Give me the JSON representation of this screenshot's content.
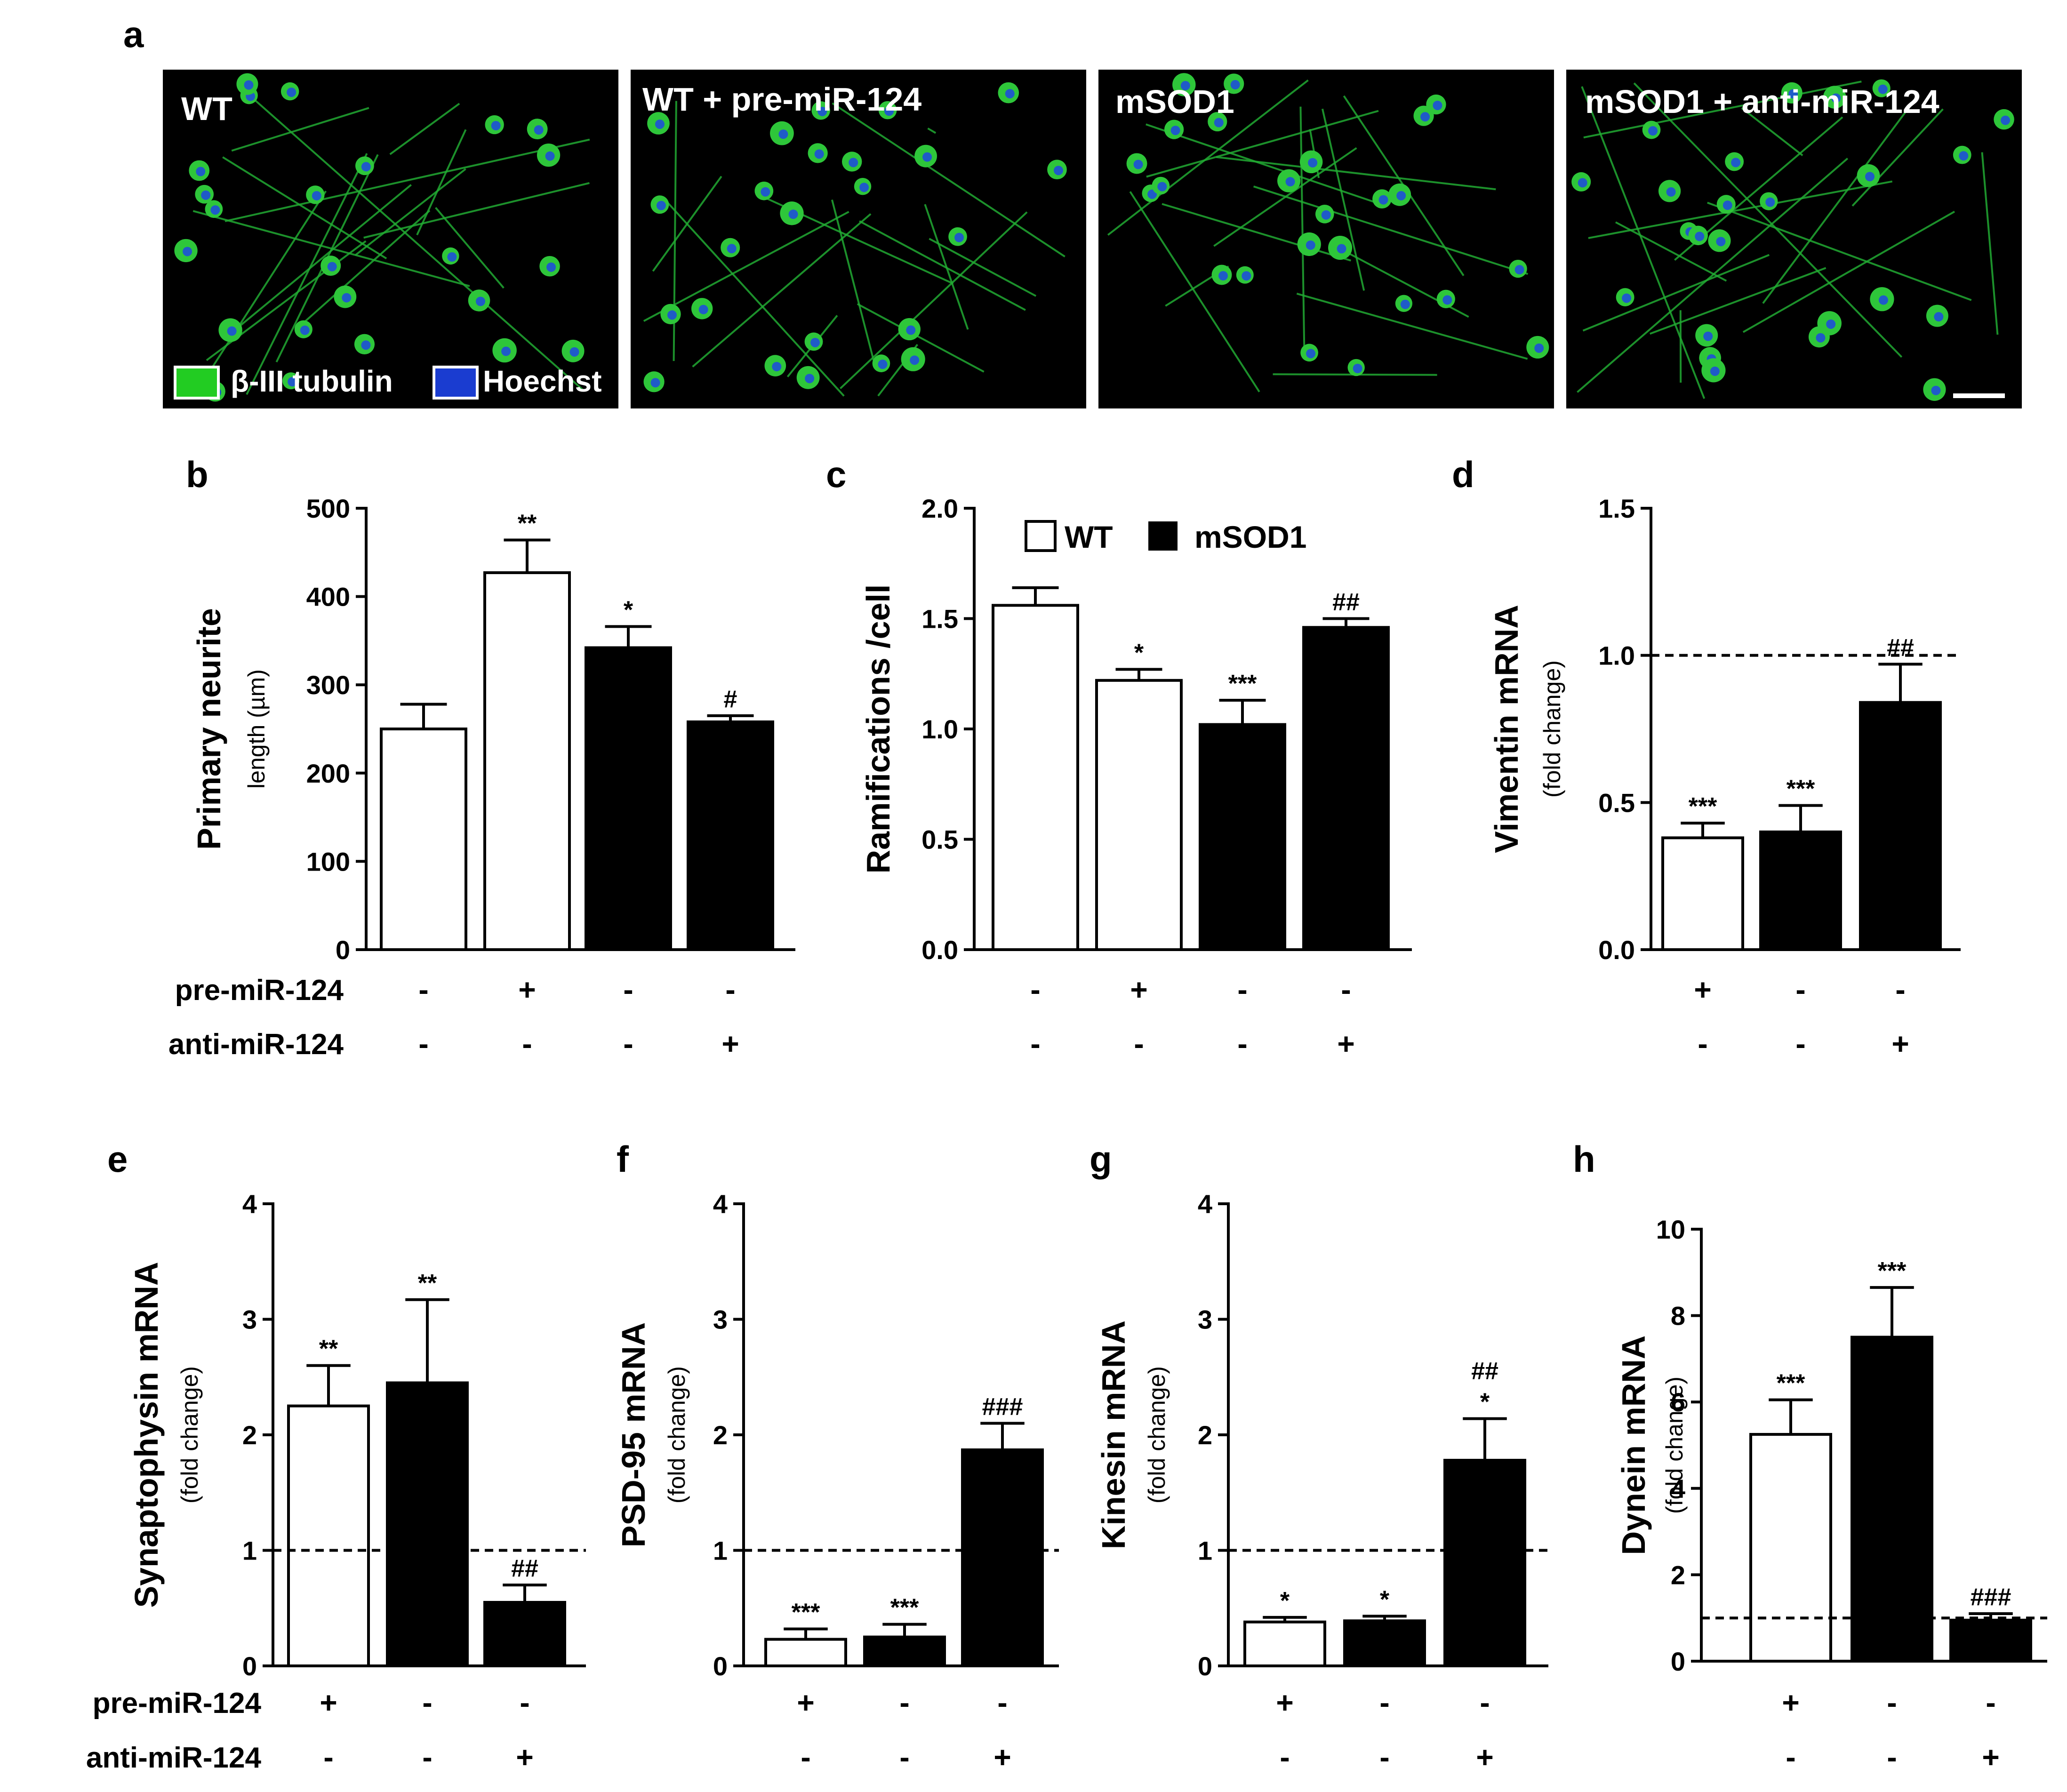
{
  "panel_a": {
    "label": "a",
    "images": [
      {
        "title": "WT"
      },
      {
        "title": "WT + pre-miR-124"
      },
      {
        "title": "mSOD1"
      },
      {
        "title": "mSOD1 + anti-miR-124"
      }
    ],
    "legend": [
      {
        "label": "β-III tubulin",
        "color": "#22cc22"
      },
      {
        "label": "Hoechst",
        "color": "#1a3cd0"
      }
    ]
  },
  "legend": {
    "wt": "WT",
    "msod1": "mSOD1"
  },
  "row_labels": {
    "pre": "pre-miR-124",
    "anti": "anti-miR-124"
  },
  "colors": {
    "wt_fill": "#ffffff",
    "msod1_fill": "#000000",
    "stroke": "#000000"
  },
  "chart_data": [
    {
      "id": "b",
      "label": "b",
      "type": "bar",
      "ylabel": "Primary neurite",
      "ylabel_sub": "length (µm)",
      "ylim": [
        0,
        500
      ],
      "yticks": [
        0,
        100,
        200,
        300,
        400,
        500
      ],
      "bars": [
        {
          "group": "WT",
          "value": 250,
          "error": 28,
          "annotation": "",
          "pre": "-",
          "anti": "-"
        },
        {
          "group": "WT",
          "value": 427,
          "error": 37,
          "annotation": "**",
          "pre": "+",
          "anti": "-"
        },
        {
          "group": "mSOD1",
          "value": 342,
          "error": 24,
          "annotation": "*",
          "pre": "-",
          "anti": "-"
        },
        {
          "group": "mSOD1",
          "value": 258,
          "error": 7,
          "annotation": "#",
          "pre": "-",
          "anti": "+"
        }
      ]
    },
    {
      "id": "c",
      "label": "c",
      "type": "bar",
      "ylabel": "Ramifications /cell",
      "ylabel_sub": "",
      "ylim": [
        0,
        2.0
      ],
      "yticks": [
        "0.0",
        "0.5",
        "1.0",
        "1.5",
        "2.0"
      ],
      "bars": [
        {
          "group": "WT",
          "value": 1.56,
          "error": 0.08,
          "annotation": "",
          "pre": "-",
          "anti": "-"
        },
        {
          "group": "WT",
          "value": 1.22,
          "error": 0.05,
          "annotation": "*",
          "pre": "+",
          "anti": "-"
        },
        {
          "group": "mSOD1",
          "value": 1.02,
          "error": 0.11,
          "annotation": "***",
          "pre": "-",
          "anti": "-"
        },
        {
          "group": "mSOD1",
          "value": 1.46,
          "error": 0.04,
          "annotation": "##",
          "pre": "-",
          "anti": "+"
        }
      ]
    },
    {
      "id": "d",
      "label": "d",
      "type": "bar",
      "ylabel": "Vimentin mRNA",
      "ylabel_sub": "(fold change)",
      "ylim": [
        0,
        1.5
      ],
      "yticks": [
        "0.0",
        "0.5",
        "1.0",
        "1.5"
      ],
      "reference_line": 1.0,
      "bars": [
        {
          "group": "WT",
          "value": 0.38,
          "error": 0.05,
          "annotation": "***",
          "pre": "+",
          "anti": "-"
        },
        {
          "group": "mSOD1",
          "value": 0.4,
          "error": 0.09,
          "annotation": "***",
          "pre": "-",
          "anti": "-"
        },
        {
          "group": "mSOD1",
          "value": 0.84,
          "error": 0.13,
          "annotation": "##",
          "pre": "-",
          "anti": "+"
        }
      ]
    },
    {
      "id": "e",
      "label": "e",
      "type": "bar",
      "ylabel": "Synaptophysin mRNA",
      "ylabel_sub": "(fold change)",
      "ylim": [
        0,
        4
      ],
      "yticks": [
        0,
        1,
        2,
        3,
        4
      ],
      "reference_line": 1,
      "bars": [
        {
          "group": "WT",
          "value": 2.25,
          "error": 0.35,
          "annotation": "**",
          "pre": "+",
          "anti": "-"
        },
        {
          "group": "mSOD1",
          "value": 2.45,
          "error": 0.72,
          "annotation": "**",
          "pre": "-",
          "anti": "-"
        },
        {
          "group": "mSOD1",
          "value": 0.55,
          "error": 0.15,
          "annotation": "##",
          "pre": "-",
          "anti": "+"
        }
      ]
    },
    {
      "id": "f",
      "label": "f",
      "type": "bar",
      "ylabel": "PSD-95 mRNA",
      "ylabel_sub": "(fold change)",
      "ylim": [
        0,
        4
      ],
      "yticks": [
        0,
        1,
        2,
        3,
        4
      ],
      "reference_line": 1,
      "bars": [
        {
          "group": "WT",
          "value": 0.23,
          "error": 0.09,
          "annotation": "***",
          "pre": "+",
          "anti": "-"
        },
        {
          "group": "mSOD1",
          "value": 0.25,
          "error": 0.11,
          "annotation": "***",
          "pre": "-",
          "anti": "-"
        },
        {
          "group": "mSOD1",
          "value": 1.87,
          "error": 0.23,
          "annotation": "###",
          "pre": "-",
          "anti": "+"
        }
      ]
    },
    {
      "id": "g",
      "label": "g",
      "type": "bar",
      "ylabel": "Kinesin mRNA",
      "ylabel_sub": "(fold change)",
      "ylim": [
        0,
        4
      ],
      "yticks": [
        0,
        1,
        2,
        3,
        4
      ],
      "reference_line": 1,
      "bars": [
        {
          "group": "WT",
          "value": 0.38,
          "error": 0.04,
          "annotation": "*",
          "pre": "+",
          "anti": "-"
        },
        {
          "group": "mSOD1",
          "value": 0.39,
          "error": 0.04,
          "annotation": "*",
          "pre": "-",
          "anti": "-"
        },
        {
          "group": "mSOD1",
          "value": 1.78,
          "error": 0.36,
          "annotation": "*",
          "annotation_top": "##",
          "pre": "-",
          "anti": "+"
        }
      ]
    },
    {
      "id": "h",
      "label": "h",
      "type": "bar",
      "ylabel": "Dynein mRNA",
      "ylabel_sub": "(fold change)",
      "ylim": [
        0,
        10
      ],
      "yticks": [
        0,
        2,
        4,
        6,
        8,
        10
      ],
      "reference_line": 1,
      "bars": [
        {
          "group": "WT",
          "value": 5.25,
          "error": 0.8,
          "annotation": "***",
          "pre": "+",
          "anti": "-"
        },
        {
          "group": "mSOD1",
          "value": 7.5,
          "error": 1.15,
          "annotation": "***",
          "pre": "-",
          "anti": "-"
        },
        {
          "group": "mSOD1",
          "value": 0.95,
          "error": 0.15,
          "annotation": "###",
          "pre": "-",
          "anti": "+"
        }
      ]
    }
  ]
}
